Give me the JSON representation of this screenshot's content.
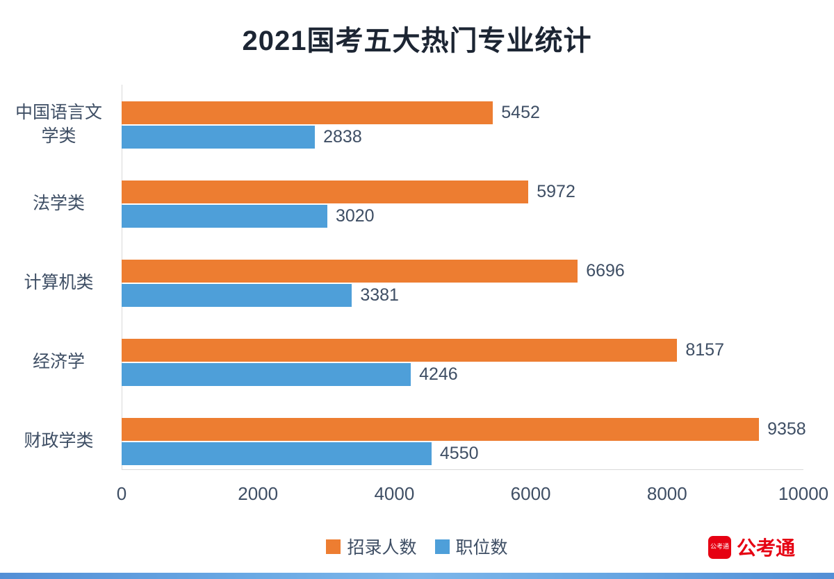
{
  "chart_data": {
    "type": "bar",
    "orientation": "horizontal",
    "title": "2021国考五大热门专业统计",
    "categories": [
      "中国语言文学类",
      "法学类",
      "计算机类",
      "经济学",
      "财政学类"
    ],
    "categories_order": "top-to-bottom",
    "series": [
      {
        "name": "招录人数",
        "key": "recruit-count",
        "color": "#ED7D31",
        "values": [
          5452,
          5972,
          6696,
          8157,
          9358
        ]
      },
      {
        "name": "职位数",
        "key": "position-count",
        "color": "#4E9FD9",
        "values": [
          2838,
          3020,
          3381,
          4246,
          4550
        ]
      }
    ],
    "xlim": [
      0,
      10000
    ],
    "x_ticks": [
      0,
      2000,
      4000,
      6000,
      8000,
      10000
    ],
    "grid": false,
    "legend_position": "bottom",
    "data_labels": true
  },
  "colors": {
    "title_text": "#1c2533",
    "axis_text": "#3e4e64",
    "axis_line": "#d9d9d9",
    "brand_red": "#e60012",
    "bottom_strip_blue": "#5b9bd5"
  },
  "watermark": {
    "badge_text": "公考通",
    "brand_text": "公考通"
  }
}
